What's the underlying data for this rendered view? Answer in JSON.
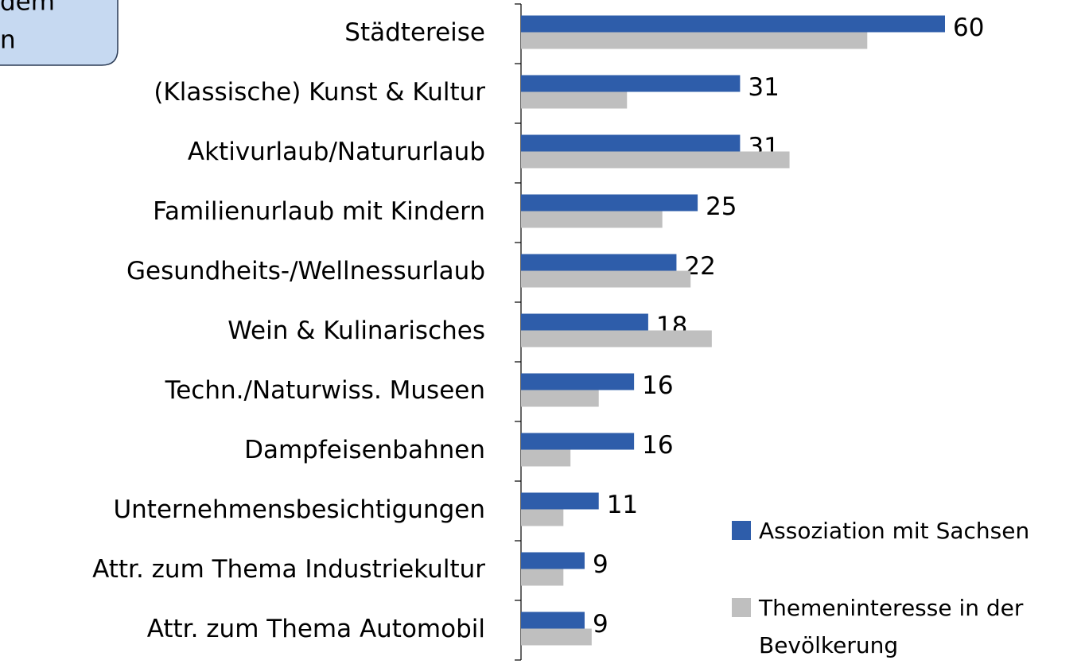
{
  "chart_data": {
    "type": "bar",
    "orientation": "horizontal",
    "annotation": [
      "dem",
      "n"
    ],
    "categories": [
      "Städtereise",
      "(Klassische) Kunst & Kultur",
      "Aktivurlaub/Natururlaub",
      "Familienurlaub mit Kindern",
      "Gesundheits-/Wellnessurlaub",
      "Wein & Kulinarisches",
      "Techn./Naturwiss. Museen",
      "Dampfeisenbahnen",
      "Unternehmensbesichtigungen",
      "Attr. zum Thema Industriekultur",
      "Attr. zum Thema Automobil"
    ],
    "series": [
      {
        "name": "Assoziation mit Sachsen",
        "color": "#2e5daa",
        "values": [
          60,
          31,
          31,
          25,
          22,
          18,
          16,
          16,
          11,
          9,
          9
        ],
        "labels": true
      },
      {
        "name": "Themeninteresse in der Bevölkerung",
        "color": "#bfbfbf",
        "values": [
          49,
          15,
          38,
          20,
          24,
          27,
          11,
          7,
          6,
          6,
          10
        ],
        "labels": false
      }
    ],
    "xlim": [
      0,
      60
    ],
    "legend": "bottom-right"
  }
}
